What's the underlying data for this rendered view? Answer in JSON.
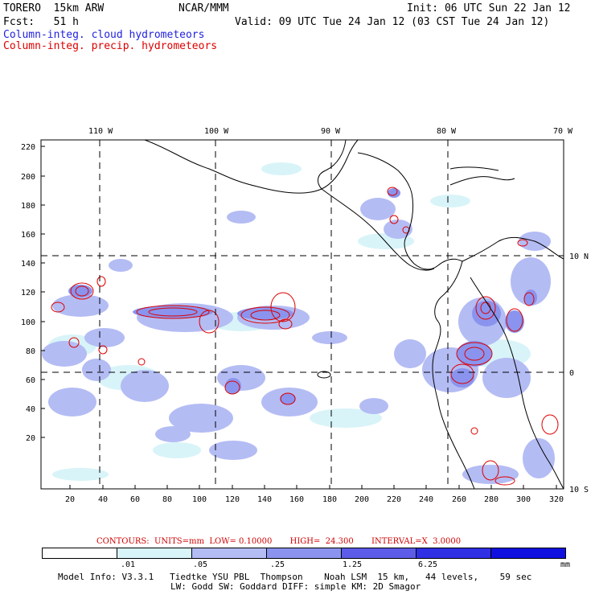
{
  "header": {
    "line1_left": "TORERO  15km ARW",
    "line1_center": "NCAR/MMM",
    "line1_right": "Init: 06 UTC Sun 22 Jan 12",
    "line2_left": "Fcst:   51 h",
    "line2_right": "Valid: 09 UTC Tue 24 Jan 12 (03 CST Tue 24 Jan 12)",
    "field_cloud": "Column-integ. cloud hydrometeors",
    "field_precip": "Column-integ. precip. hydrometeors",
    "color_cloud": "#2222dd",
    "color_precip": "#dd0000"
  },
  "map": {
    "top_lon_labels": [
      "110 W",
      "100 W",
      "90 W",
      "80 W",
      "70 W"
    ],
    "right_lat_labels": [
      "10 N",
      "0",
      "10 S"
    ],
    "y_ticks": [
      "220",
      "200",
      "180",
      "160",
      "140",
      "120",
      "100",
      "80",
      "60",
      "40",
      "20"
    ],
    "x_ticks": [
      "20",
      "40",
      "60",
      "80",
      "100",
      "120",
      "140",
      "160",
      "180",
      "200",
      "220",
      "240",
      "260",
      "280",
      "300",
      "320"
    ]
  },
  "contours": {
    "text": "CONTOURS:  UNITS=mm  LOW= 0.10000       HIGH=  24.300       INTERVAL=X  3.0000"
  },
  "colorbar": {
    "colors": [
      "#ffffff",
      "#d8f4f8",
      "#b4bcf4",
      "#8a94ee",
      "#5c5ce8",
      "#3030e4",
      "#1010e0"
    ],
    "labels": [
      ".01",
      ".05",
      ".25",
      "1.25",
      "6.25"
    ],
    "units": "mm"
  },
  "footer": {
    "line1": "Model Info: V3.3.1   Tiedtke YSU PBL  Thompson    Noah LSM  15 km,   44 levels,    59 sec",
    "line2": "LW: Godd SW: Goddard DIFF: simple KM: 2D Smagor"
  }
}
